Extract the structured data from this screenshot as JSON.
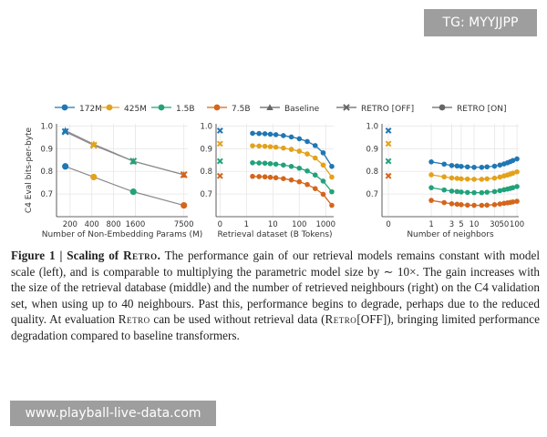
{
  "watermarks": {
    "top": "TG: MYYJJPP",
    "bottom": "www.playball-live-data.com"
  },
  "legend": [
    {
      "label": "172M",
      "color": "#1f77b4",
      "marker": "circle"
    },
    {
      "label": "425M",
      "color": "#e3a21a",
      "marker": "circle"
    },
    {
      "label": "1.5B",
      "color": "#22a27a",
      "marker": "circle"
    },
    {
      "label": "7.5B",
      "color": "#d4661c",
      "marker": "circle"
    },
    {
      "label": "Baseline",
      "color": "#666666",
      "marker": "triangle"
    },
    {
      "label": "RETRO [OFF]",
      "color": "#666666",
      "marker": "x"
    },
    {
      "label": "RETRO [ON]",
      "color": "#666666",
      "marker": "circle"
    }
  ],
  "chart_data": [
    {
      "type": "line",
      "xlabel": "Number of Non-Embedding Params (M)",
      "ylabel": "C4 Eval bits-per-byte",
      "xscale": "log",
      "xlim": [
        130,
        8500
      ],
      "ylim": [
        0.6,
        1.01
      ],
      "xticks": [
        200,
        400,
        800,
        1600,
        7500
      ],
      "yticks": [
        0.7,
        0.8,
        0.9,
        1.0
      ],
      "ytick_labels": [
        "0.7",
        "0.8",
        "0.9",
        "1.0"
      ],
      "xtick_labels": [
        "200",
        "400",
        "800",
        "1600",
        "7500"
      ],
      "x": [
        172,
        425,
        1500,
        7500
      ],
      "point_colors": [
        "#1f77b4",
        "#e3a21a",
        "#22a27a",
        "#d4661c"
      ],
      "series": [
        {
          "name": "Baseline",
          "marker": "triangle",
          "values": [
            0.98,
            0.92,
            0.845,
            0.785
          ]
        },
        {
          "name": "RETRO [OFF]",
          "marker": "x",
          "values": [
            0.975,
            0.915,
            0.845,
            0.785
          ]
        },
        {
          "name": "RETRO [ON]",
          "marker": "circle",
          "values": [
            0.822,
            0.775,
            0.71,
            0.65
          ]
        }
      ]
    },
    {
      "type": "line",
      "xlabel": "Retrieval dataset (B Tokens)",
      "ylabel": "",
      "xscale": "symlog",
      "xlim": [
        0,
        2000
      ],
      "ylim": [
        0.6,
        1.01
      ],
      "xticks": [
        0,
        1,
        10,
        100,
        1000
      ],
      "xtick_labels": [
        "0",
        "1",
        "10",
        "100",
        "1000"
      ],
      "yticks": [
        0.7,
        0.8,
        0.9,
        1.0
      ],
      "ytick_labels": [
        "0.7",
        "0.8",
        "0.9",
        "1.0"
      ],
      "x0_points": [
        0.98,
        0.922,
        0.845,
        0.78
      ],
      "x": [
        1.7,
        3,
        5,
        8,
        13,
        25,
        50,
        100,
        200,
        400,
        800,
        1700
      ],
      "series": [
        {
          "name": "172M",
          "color": "#1f77b4",
          "values": [
            0.968,
            0.967,
            0.966,
            0.964,
            0.962,
            0.958,
            0.952,
            0.944,
            0.932,
            0.914,
            0.882,
            0.822
          ]
        },
        {
          "name": "425M",
          "color": "#e3a21a",
          "values": [
            0.913,
            0.912,
            0.911,
            0.909,
            0.907,
            0.903,
            0.897,
            0.889,
            0.877,
            0.859,
            0.828,
            0.775
          ]
        },
        {
          "name": "1.5B",
          "color": "#22a27a",
          "values": [
            0.838,
            0.837,
            0.836,
            0.834,
            0.832,
            0.828,
            0.822,
            0.814,
            0.802,
            0.784,
            0.757,
            0.71
          ]
        },
        {
          "name": "7.5B",
          "color": "#d4661c",
          "values": [
            0.778,
            0.777,
            0.776,
            0.774,
            0.772,
            0.768,
            0.762,
            0.754,
            0.742,
            0.724,
            0.699,
            0.65
          ]
        }
      ]
    },
    {
      "type": "line",
      "xlabel": "Number of neighbors",
      "ylabel": "",
      "xscale": "symlog",
      "xlim": [
        0,
        110
      ],
      "ylim": [
        0.6,
        1.01
      ],
      "xticks": [
        0,
        1,
        3,
        5,
        10,
        30,
        50,
        100
      ],
      "xtick_labels": [
        "0",
        "1",
        "3",
        "5",
        "10",
        "30",
        "50",
        "100"
      ],
      "yticks": [
        0.7,
        0.8,
        0.9,
        1.0
      ],
      "ytick_labels": [
        "0.7",
        "0.8",
        "0.9",
        "1.0"
      ],
      "x0_points": [
        0.98,
        0.922,
        0.845,
        0.78
      ],
      "x": [
        1,
        2,
        3,
        4,
        5,
        7,
        10,
        15,
        20,
        30,
        40,
        50,
        60,
        70,
        80,
        100
      ],
      "series": [
        {
          "name": "172M",
          "color": "#1f77b4",
          "values": [
            0.842,
            0.832,
            0.826,
            0.824,
            0.822,
            0.82,
            0.818,
            0.818,
            0.82,
            0.823,
            0.828,
            0.833,
            0.838,
            0.843,
            0.848,
            0.855
          ]
        },
        {
          "name": "425M",
          "color": "#e3a21a",
          "values": [
            0.785,
            0.776,
            0.771,
            0.769,
            0.767,
            0.766,
            0.765,
            0.765,
            0.767,
            0.77,
            0.775,
            0.78,
            0.784,
            0.788,
            0.792,
            0.798
          ]
        },
        {
          "name": "1.5B",
          "color": "#22a27a",
          "values": [
            0.728,
            0.718,
            0.713,
            0.711,
            0.709,
            0.707,
            0.706,
            0.706,
            0.708,
            0.711,
            0.715,
            0.719,
            0.722,
            0.725,
            0.728,
            0.733
          ]
        },
        {
          "name": "7.5B",
          "color": "#d4661c",
          "values": [
            0.672,
            0.662,
            0.657,
            0.655,
            0.653,
            0.651,
            0.65,
            0.65,
            0.651,
            0.653,
            0.656,
            0.659,
            0.661,
            0.663,
            0.665,
            0.668
          ]
        }
      ]
    }
  ],
  "caption": {
    "figure_label": "Figure 1 | ",
    "title_prefix": "Scaling of ",
    "title_sc": "Retro",
    "title_dot": ".",
    "text_1": " The performance gain of our retrieval models remains constant with model scale (left), and is comparable to multiplying the parametric model size by ∼ 10×. The gain increases with the size of the retrieval database (middle) and the number of retrieved neighbours (right) on the C4 validation set, when using up to 40 neighbours. Past this, performance begins to degrade, perhaps due to the reduced quality. At evaluation ",
    "retro_sc_1": "Retro",
    "text_2": " can be used without retrieval data (",
    "retro_sc_2": "Retro",
    "text_3": "[OFF]), bringing limited performance degradation compared to baseline transformers."
  }
}
